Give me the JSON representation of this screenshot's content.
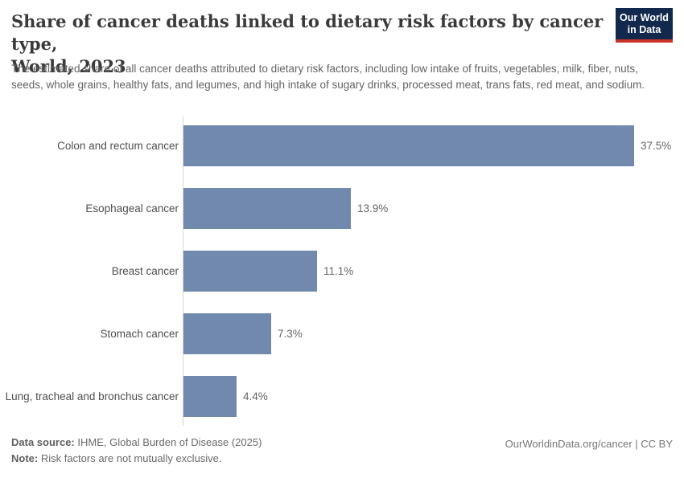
{
  "header": {
    "title_line1": "Share of cancer deaths linked to dietary risk factors by cancer type,",
    "title_line2": "World, 2023",
    "subtitle": "The estimated share of all cancer deaths attributed to dietary risk factors, including low intake of fruits, vegetables, milk, fiber, nuts, seeds, whole grains, healthy fats, and legumes, and high intake of sugary drinks, processed meat, trans fats, red meat, and sodium.",
    "logo": {
      "line1": "Our World",
      "line2": "in Data",
      "bg_color": "#12294d",
      "accent_color": "#c93227"
    }
  },
  "chart_data": {
    "type": "bar",
    "orientation": "horizontal",
    "title": "Share of cancer deaths linked to dietary risk factors by cancer type, World, 2023",
    "categories": [
      "Colon and rectum cancer",
      "Esophageal cancer",
      "Breast cancer",
      "Stomach cancer",
      "Lung, tracheal and bronchus cancer"
    ],
    "values": [
      37.5,
      13.9,
      11.1,
      7.3,
      4.4
    ],
    "value_labels": [
      "37.5%",
      "13.9%",
      "11.1%",
      "7.3%",
      "4.4%"
    ],
    "xlabel": "",
    "ylabel": "",
    "xlim": [
      0,
      40
    ],
    "unit": "%",
    "grid": false,
    "legend": null,
    "bar_color": "#7289ae",
    "axis_color": "#d5d5d5"
  },
  "footer": {
    "source_label": "Data source:",
    "source_text": " IHME, Global Burden of Disease (2025)",
    "note_label": "Note:",
    "note_text": " Risk factors are not mutually exclusive.",
    "credit": "OurWorldinData.org/cancer | CC BY"
  }
}
